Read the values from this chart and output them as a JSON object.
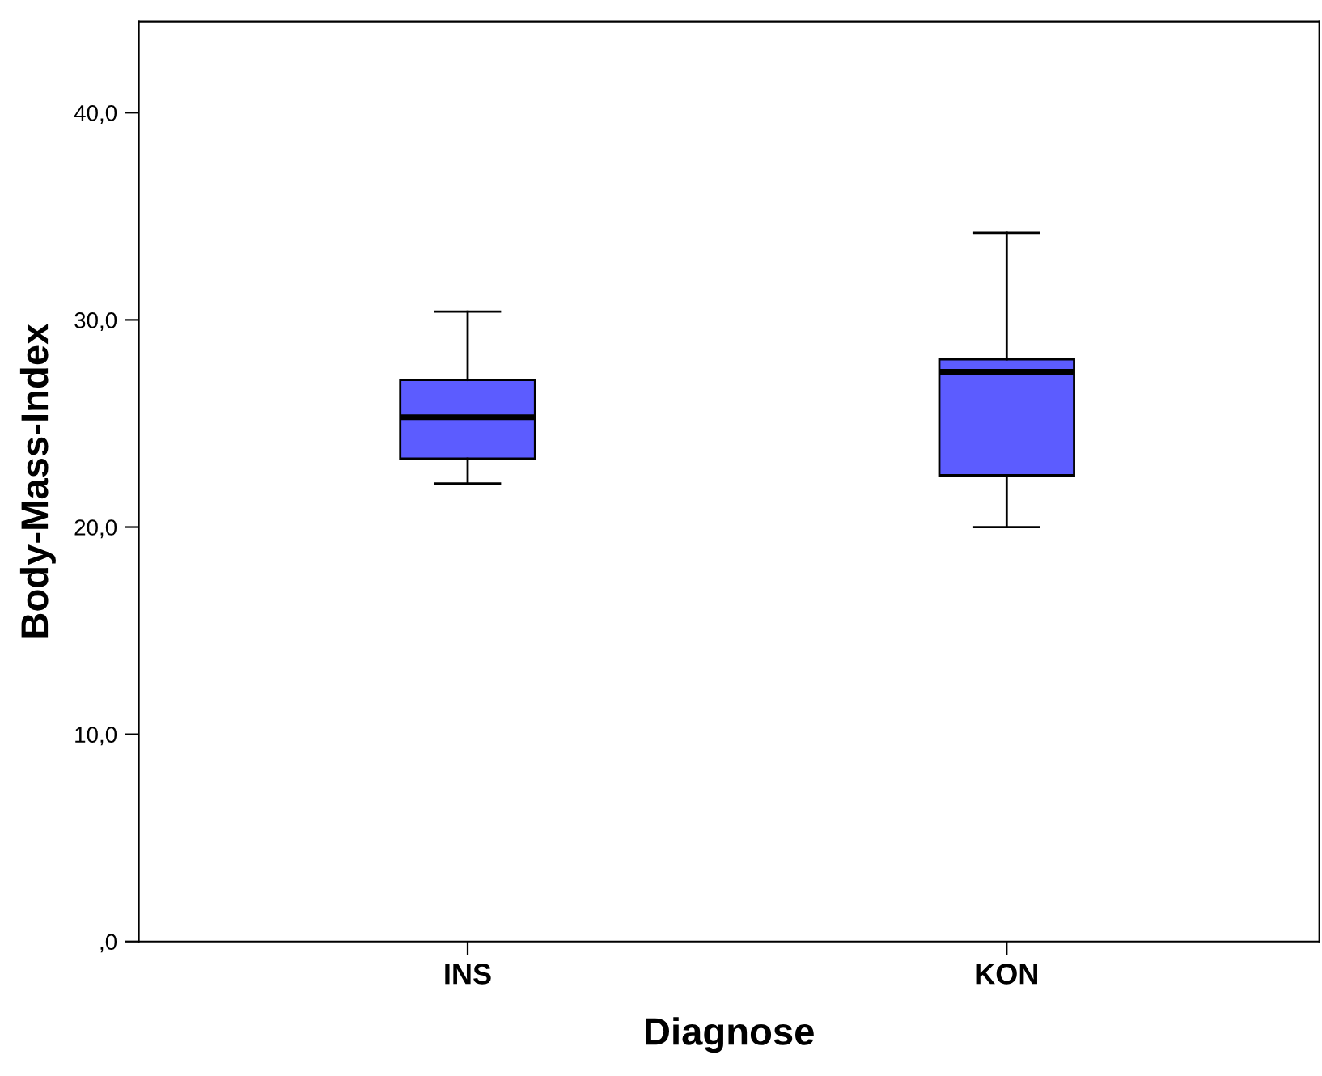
{
  "chart_data": {
    "type": "box",
    "xlabel": "Diagnose",
    "ylabel": "Body-Mass-Index",
    "categories": [
      "INS",
      "KON"
    ],
    "series": [
      {
        "color": "#5c5cff",
        "boxes": [
          {
            "low": 22.1,
            "q1": 23.3,
            "median": 25.3,
            "q3": 27.1,
            "high": 30.4
          },
          {
            "low": 20.0,
            "q1": 22.5,
            "median": 27.5,
            "q3": 28.1,
            "high": 34.2
          }
        ]
      }
    ],
    "ylim": [
      0,
      44.4
    ],
    "yticks": [
      {
        "value": 0,
        "label": ",0"
      },
      {
        "value": 10,
        "label": "10,0"
      },
      {
        "value": 20,
        "label": "20,0"
      },
      {
        "value": 30,
        "label": "30,0"
      },
      {
        "value": 40,
        "label": "40,0"
      }
    ],
    "grid": false,
    "legend": false
  }
}
